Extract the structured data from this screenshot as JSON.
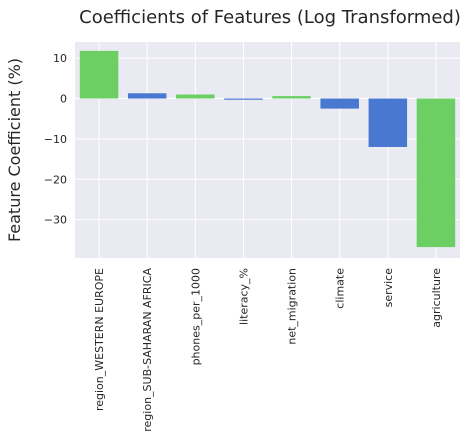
{
  "chart_data": {
    "type": "bar",
    "title": "Coefficients of Features (Log Transformed)",
    "xlabel": "",
    "ylabel": "Feature Coefficient (%)",
    "categories": [
      "region_WESTERN EUROPE",
      "region_SUB-SAHARAN AFRICA",
      "phones_per_1000",
      "literacy_%",
      "net_migration",
      "climate",
      "service",
      "agriculture"
    ],
    "values": [
      11.8,
      1.3,
      1.0,
      -0.3,
      0.6,
      -2.5,
      -12.0,
      -36.8
    ],
    "bar_colors": [
      "#6bcf63",
      "#4878d0",
      "#6bcf63",
      "#4878d0",
      "#6bcf63",
      "#4878d0",
      "#4878d0",
      "#6bcf63"
    ],
    "yticks": [
      10,
      0,
      -10,
      -20,
      -30
    ],
    "ytick_labels": [
      "10",
      "0",
      "−10",
      "−20",
      "−30"
    ],
    "ylim": [
      -39.5,
      14.0
    ],
    "grid": true,
    "background": "#eaeaf2"
  }
}
